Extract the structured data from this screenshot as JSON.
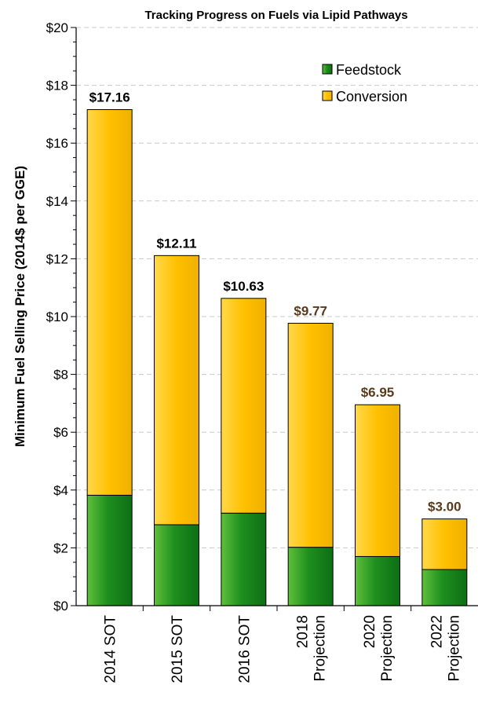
{
  "chart_data": {
    "type": "bar",
    "stacked": true,
    "title": "Tracking Progress on Fuels via Lipid Pathways",
    "ylabel": "Minimum Fuel Selling Price (2014$ per GGE)",
    "xlabel": "",
    "ylim": [
      0,
      20
    ],
    "yticks": [
      "$0",
      "$2",
      "$4",
      "$6",
      "$8",
      "$10",
      "$12",
      "$14",
      "$16",
      "$18",
      "$20"
    ],
    "grid": "horizontal-dashed",
    "legend_position": "top-right",
    "categories": [
      [
        "2014 SOT"
      ],
      [
        "2015 SOT"
      ],
      [
        "2016 SOT"
      ],
      [
        "2018",
        "Projection"
      ],
      [
        "2020",
        "Projection"
      ],
      [
        "2022",
        "Projection"
      ]
    ],
    "series": [
      {
        "name": "Feedstock",
        "color": "#1a8a1a",
        "values": [
          3.82,
          2.8,
          3.2,
          2.02,
          1.7,
          1.25
        ]
      },
      {
        "name": "Conversion",
        "color": "#ffc000",
        "values": [
          13.34,
          9.31,
          7.43,
          7.75,
          5.25,
          1.75
        ]
      }
    ],
    "totals": [
      "$17.16",
      "$12.11",
      "$10.63",
      "$9.77",
      "$6.95",
      "$3.00"
    ],
    "total_colors": [
      "#000000",
      "#000000",
      "#000000",
      "#5a3a1a",
      "#5a3a1a",
      "#5a3a1a"
    ]
  }
}
